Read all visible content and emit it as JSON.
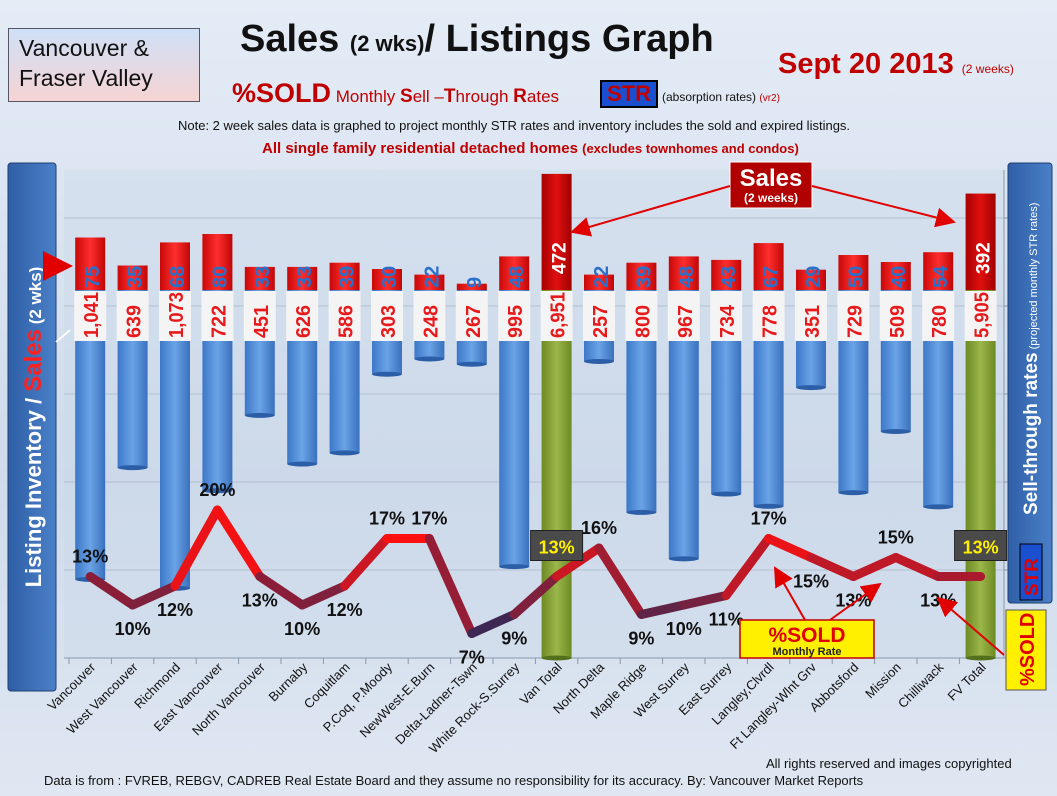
{
  "header": {
    "region_line1": "Vancouver &",
    "region_line2": "Fraser Valley",
    "title_a": "Sales ",
    "title_b": "(2 wks)",
    "title_c": "/ Listings Graph",
    "date_main": "Sept 20 2013",
    "date_sub": "(2 weeks)",
    "subtitle_a": "%SOLD",
    "subtitle_b": " Monthly ",
    "subtitle_c": "S",
    "subtitle_d": "ell –",
    "subtitle_e": "T",
    "subtitle_f": "hrough ",
    "subtitle_g": "R",
    "subtitle_h": "ates",
    "str_badge": "STR",
    "absorption": "(absorption rates) ",
    "absorption_ver": "(vr2)",
    "note": "Note: 2 week sales data is graphed to project monthly STR rates and inventory includes the sold and expired listings.",
    "subhead_a": "All single family residential detached homes ",
    "subhead_b": "(excludes townhomes and condos)"
  },
  "sidebar_left": {
    "a": "Listing Inventory / ",
    "b": "Sales",
    "c": " (2 wks)"
  },
  "sidebar_right": {
    "a": "Sell-through rates",
    "b": " (projected monthly STR rates)",
    "c": "STR"
  },
  "pct_badge": "%SOLD",
  "annotations": {
    "sales_label": "Sales",
    "sales_sub": "(2 weeks)",
    "sold_label": "%SOLD",
    "sold_sub": "Monthly Rate"
  },
  "footer": {
    "rights": "All rights reserved and  images copyrighted",
    "source": "Data is  from : FVREB, REBGV, CADREB Real Estate Board and they assume no responsibility  for its accuracy. By: Vancouver Market Reports"
  },
  "colors": {
    "inventory_bar": "#4a86d4",
    "total_bar": "#7f9a2e",
    "sales_bar": "#e01010",
    "label_red": "#e8191a",
    "label_blue": "#2a6fc9",
    "line_high": "#ff1010",
    "line_low": "#2a2a5a"
  },
  "chart_data": {
    "type": "bar",
    "categories": [
      "Vancouver",
      "West Vancouver",
      "Richmond",
      "East Vancouver",
      "North Vancouver",
      "Burnaby",
      "Coquitlam",
      "P.Coq, P.Moody",
      "NewWest-E.Burn",
      "Delta-Ladner-Tswn",
      "White Rock-S.Surrey",
      "Van Total",
      "North Delta",
      "Maple Ridge",
      "West Surrey",
      "East Surrey",
      "Langley,Clvrdl",
      "Ft Langley-Wlnt Grv",
      "Abbotsford",
      "Mission",
      "Chilliwack",
      "FV Total"
    ],
    "series": [
      {
        "values": [
          1041,
          639,
          1073,
          722,
          451,
          626,
          586,
          303,
          248,
          267,
          995,
          6951,
          257,
          800,
          967,
          734,
          778,
          351,
          729,
          509,
          780,
          5905
        ],
        "value_labels": [
          "1,041",
          "639",
          "1,073",
          "722",
          "451",
          "626",
          "586",
          "303",
          "248",
          "267",
          "995",
          "6,951",
          "257",
          "800",
          "967",
          "734",
          "778",
          "351",
          "729",
          "509",
          "780",
          "5,905"
        ]
      },
      {
        "values": [
          75,
          35,
          68,
          80,
          33,
          33,
          39,
          30,
          22,
          9,
          48,
          472,
          22,
          39,
          48,
          43,
          67,
          29,
          50,
          40,
          54,
          392
        ]
      },
      {
        "values": [
          13,
          10,
          12,
          20,
          13,
          10,
          12,
          17,
          17,
          7,
          9,
          13,
          16,
          9,
          10,
          11,
          17,
          15,
          13,
          15,
          13,
          13
        ],
        "value_labels": [
          "13%",
          "10%",
          "12%",
          "20%",
          "13%",
          "10%",
          "12%",
          "17%",
          "17%",
          "7%",
          "9%",
          "13%",
          "16%",
          "9%",
          "10%",
          "11%",
          "17%",
          "15%",
          "13%",
          "15%",
          "13%",
          "13%"
        ]
      }
    ],
    "totals_index": [
      11,
      21
    ],
    "xlabel": "",
    "ylabel": "Listing Inventory / Sales (2 wks)",
    "y2label": "Sell-through rates (projected monthly STR rates)"
  }
}
